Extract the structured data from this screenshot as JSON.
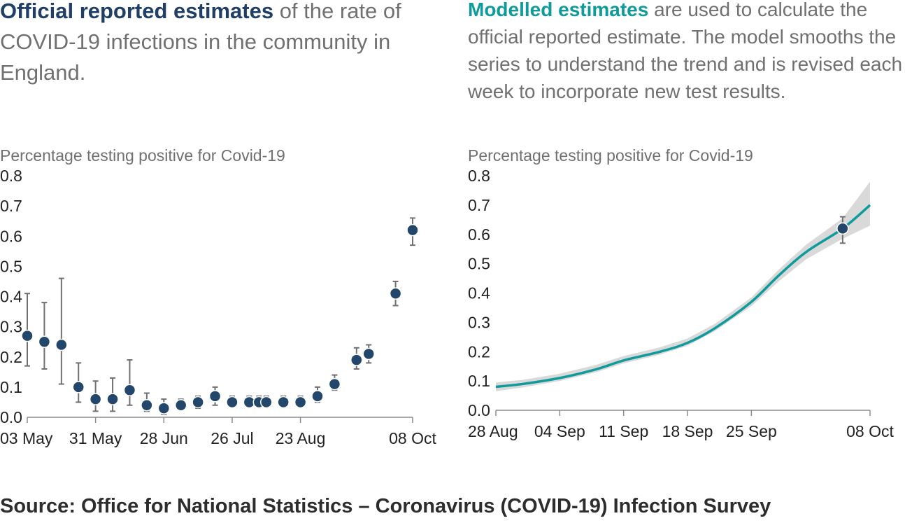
{
  "left_panel": {
    "title_highlight": "Official reported estimates",
    "title_rest": " of the rate of COVID-19 infections in the community in England."
  },
  "right_panel": {
    "title_highlight": "Modelled estimates",
    "title_rest": " are used to calculate the official reported estimate. The model smooths the series to understand the trend and is revised each week to incorporate new test results."
  },
  "source": "Source: Office for National Statistics – Coronavirus (COVID-19) Infection Survey",
  "colors": {
    "navy": "#1f3f66",
    "point": "#23476b",
    "teal": "#0f9b9b",
    "band": "#d9d9d9",
    "errorbar": "#707071"
  },
  "chart_data": [
    {
      "type": "scatter",
      "ylabel": "Percentage testing positive for Covid-19",
      "xlabel": "",
      "ylim": [
        0,
        0.8
      ],
      "yticks": [
        "0.0",
        "0.1",
        "0.2",
        "0.3",
        "0.4",
        "0.5",
        "0.6",
        "0.7",
        "0.8"
      ],
      "xticks": [
        "03 May",
        "31 May",
        "28 Jun",
        "26 Jul",
        "23 Aug",
        "08 Oct"
      ],
      "xtick_dates": [
        "2020-05-03",
        "2020-05-31",
        "2020-06-28",
        "2020-07-26",
        "2020-08-23",
        "2020-10-08"
      ],
      "xlim": [
        "2020-05-03",
        "2020-10-08"
      ],
      "grid": false,
      "series": [
        {
          "x": [
            "2020-05-03",
            "2020-05-10",
            "2020-05-17",
            "2020-05-24",
            "2020-05-31",
            "2020-06-07",
            "2020-06-14",
            "2020-06-21",
            "2020-06-28",
            "2020-07-05",
            "2020-07-12",
            "2020-07-19",
            "2020-07-26",
            "2020-08-02",
            "2020-08-06",
            "2020-08-09",
            "2020-08-16",
            "2020-08-23",
            "2020-08-30",
            "2020-09-06",
            "2020-09-15",
            "2020-09-20",
            "2020-10-01",
            "2020-10-08"
          ],
          "y": [
            0.27,
            0.25,
            0.24,
            0.1,
            0.06,
            0.06,
            0.09,
            0.04,
            0.03,
            0.04,
            0.05,
            0.07,
            0.05,
            0.05,
            0.05,
            0.05,
            0.05,
            0.05,
            0.07,
            0.11,
            0.19,
            0.21,
            0.41,
            0.62
          ],
          "y_low": [
            0.17,
            0.16,
            0.11,
            0.05,
            0.02,
            0.02,
            0.04,
            0.02,
            0.01,
            0.03,
            0.03,
            0.04,
            0.04,
            0.04,
            0.04,
            0.04,
            0.04,
            0.04,
            0.05,
            0.09,
            0.16,
            0.18,
            0.37,
            0.57
          ],
          "y_high": [
            0.41,
            0.38,
            0.46,
            0.18,
            0.12,
            0.13,
            0.19,
            0.08,
            0.06,
            0.06,
            0.07,
            0.1,
            0.07,
            0.07,
            0.07,
            0.07,
            0.07,
            0.07,
            0.1,
            0.14,
            0.23,
            0.24,
            0.45,
            0.66
          ]
        }
      ]
    },
    {
      "type": "line",
      "ylabel": "Percentage testing positive for Covid-19",
      "xlabel": "",
      "ylim": [
        0,
        0.8
      ],
      "yticks": [
        "0.0",
        "0.1",
        "0.2",
        "0.3",
        "0.4",
        "0.5",
        "0.6",
        "0.7",
        "0.8"
      ],
      "xticks": [
        "28 Aug",
        "04 Sep",
        "11 Sep",
        "18 Sep",
        "25 Sep",
        "08 Oct"
      ],
      "xtick_dates": [
        "2020-08-28",
        "2020-09-04",
        "2020-09-11",
        "2020-09-18",
        "2020-09-25",
        "2020-10-08"
      ],
      "xlim": [
        "2020-08-28",
        "2020-10-08"
      ],
      "grid": false,
      "series": [
        {
          "x": [
            "2020-08-28",
            "2020-08-31",
            "2020-09-04",
            "2020-09-08",
            "2020-09-11",
            "2020-09-15",
            "2020-09-18",
            "2020-09-21",
            "2020-09-25",
            "2020-09-28",
            "2020-10-01",
            "2020-10-05",
            "2020-10-08"
          ],
          "y": [
            0.08,
            0.09,
            0.11,
            0.14,
            0.17,
            0.2,
            0.23,
            0.28,
            0.37,
            0.46,
            0.54,
            0.62,
            0.7
          ],
          "y_low": [
            0.065,
            0.078,
            0.1,
            0.13,
            0.16,
            0.19,
            0.22,
            0.27,
            0.355,
            0.44,
            0.515,
            0.585,
            0.63
          ],
          "y_high": [
            0.095,
            0.104,
            0.125,
            0.155,
            0.185,
            0.215,
            0.245,
            0.295,
            0.385,
            0.48,
            0.565,
            0.655,
            0.78
          ]
        }
      ],
      "points": [
        {
          "x": "2020-10-05",
          "y": 0.62,
          "y_low": 0.57,
          "y_high": 0.66
        }
      ]
    }
  ]
}
